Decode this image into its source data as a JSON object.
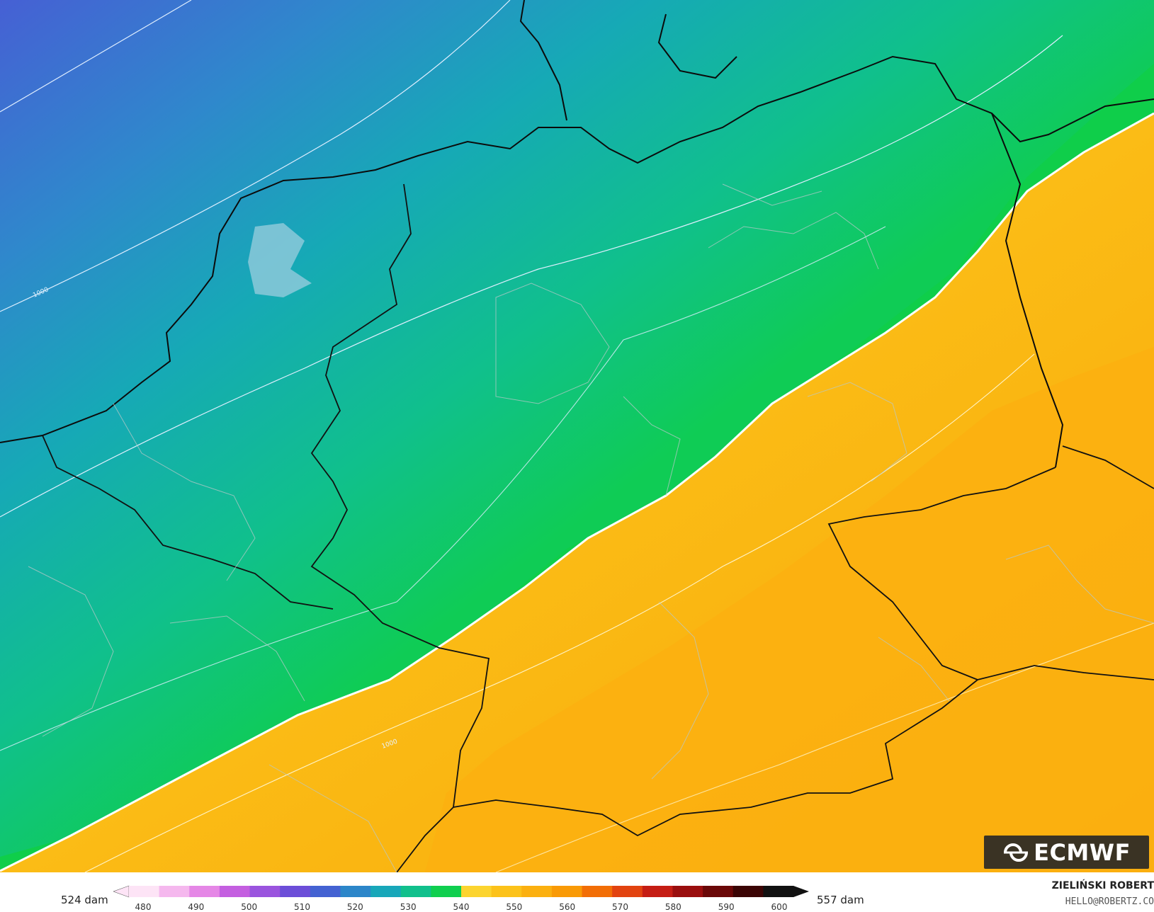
{
  "map": {
    "colors": {
      "band_500s_blue": "#3e6fd2",
      "band_530": "#1a9ec0",
      "band_540": "#10be8c",
      "band_550": "#0fce4a",
      "band_560": "#fcd42f",
      "band_565": "#fcc21a",
      "band_570": "#fbb010",
      "highlight_contour": "#ffffff"
    },
    "isobar_labels": [
      "1000",
      "1000"
    ]
  },
  "legend": {
    "min_label": "524 dam",
    "max_label": "557 dam",
    "ticks": [
      "480",
      "490",
      "500",
      "510",
      "520",
      "530",
      "540",
      "550",
      "560",
      "570",
      "580",
      "590",
      "600"
    ],
    "colors": [
      "#fde4f6",
      "#f5b8ee",
      "#e587e6",
      "#c45fe0",
      "#9a54de",
      "#6c4ed8",
      "#4462d2",
      "#2c86c9",
      "#18a7b9",
      "#11c08c",
      "#10cf4f",
      "#fcd42f",
      "#fcc21a",
      "#fbb010",
      "#f99a06",
      "#f26e06",
      "#e24310",
      "#c51d14",
      "#9a0e0e",
      "#6a0808",
      "#3b0505",
      "#111111"
    ]
  },
  "branding": {
    "logo_text": "ECMWF",
    "author": "ZIELIŃSKI ROBERT",
    "email": "HELLO@ROBERTZ.CO"
  }
}
